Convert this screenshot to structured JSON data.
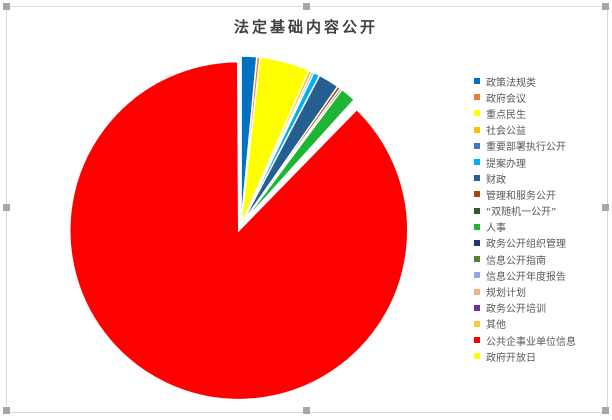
{
  "chart_data": {
    "type": "pie",
    "title": "法定基础内容公开",
    "legend_position": "right",
    "categories": [
      "政策法规类",
      "政府会议",
      "重点民生",
      "社会公益",
      "重要部署执行公开",
      "提案办理",
      "财政",
      "管理和服务公开",
      "“双随机一公开”",
      "人事",
      "政务公开组织管理",
      "信息公开指南",
      "信息公开年度报告",
      "规划计划",
      "政务公开培训",
      "其他",
      "公共企事业单位信息",
      "政府开放日"
    ],
    "values": [
      1.5,
      0.3,
      4.8,
      0.3,
      0.2,
      0.6,
      2.0,
      0.3,
      0.2,
      1.5,
      0.1,
      0.1,
      0.1,
      0.1,
      0.1,
      0.1,
      87.6,
      0.1
    ],
    "colors": [
      "#0070c0",
      "#ed7d31",
      "#ffff00",
      "#ffc000",
      "#4472c4",
      "#00b0f0",
      "#255e91",
      "#9e480e",
      "#375623",
      "#1fb534",
      "#203864",
      "#548235",
      "#8faadc",
      "#f4b183",
      "#7030a0",
      "#f7c842",
      "#ff0000",
      "#ffff00"
    ],
    "exploded": "公共企事业单位信息"
  }
}
